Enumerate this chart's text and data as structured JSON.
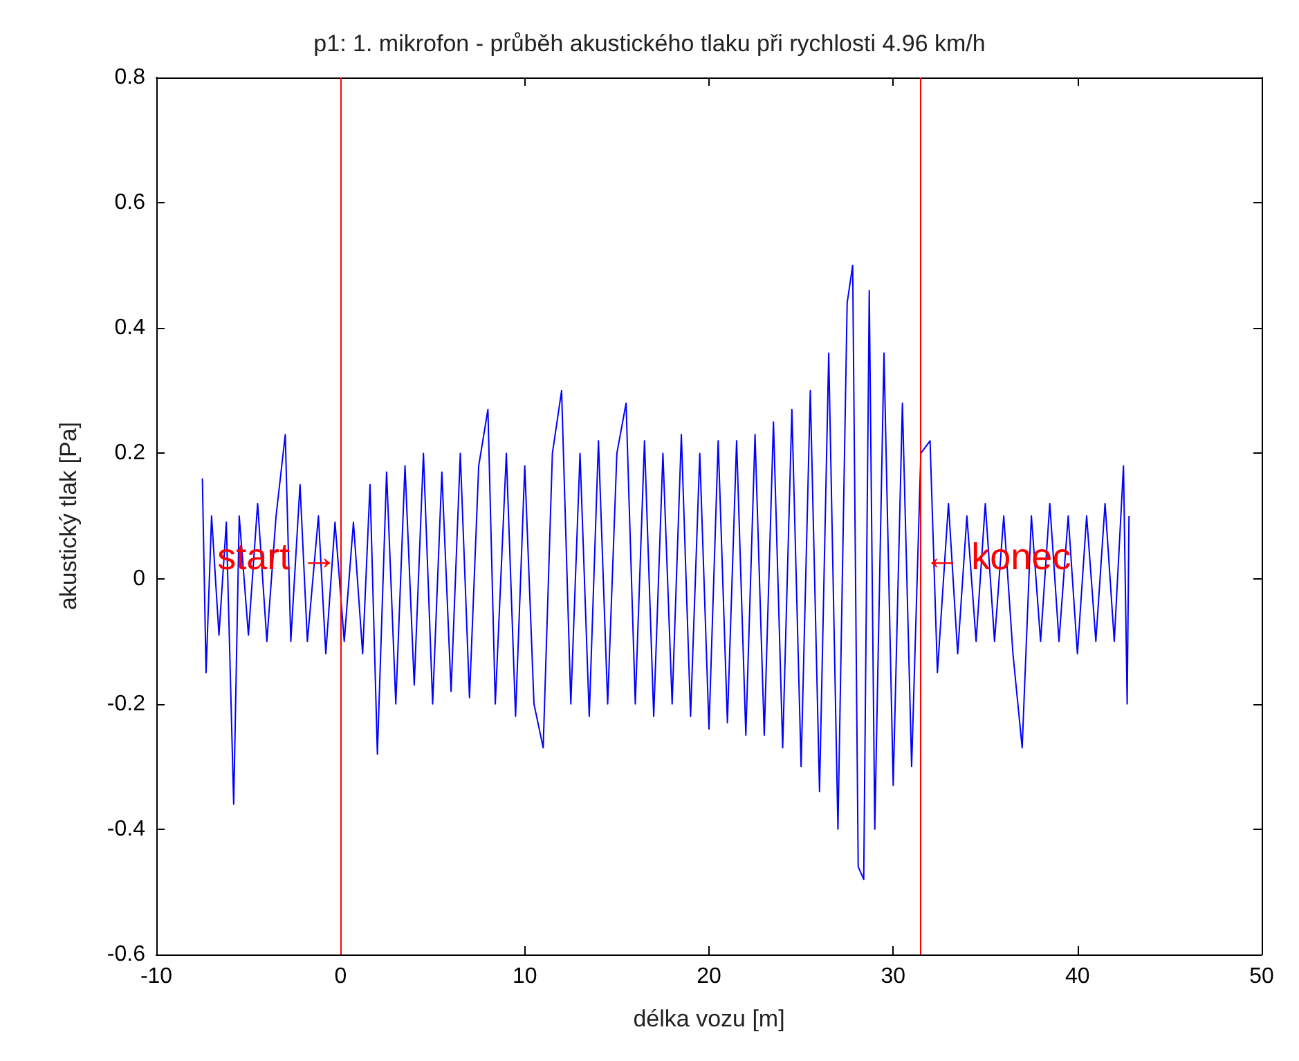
{
  "chart_data": {
    "type": "line",
    "title": "p1: 1. mikrofon - průběh akustického tlaku při rychlosti 4.96 km/h",
    "xlabel": "délka vozu [m]",
    "ylabel": "akustický tlak [Pa]",
    "xlim": [
      -10,
      50
    ],
    "xticks": [
      -10,
      0,
      10,
      20,
      30,
      40,
      50
    ],
    "ylim": [
      -0.6,
      0.8
    ],
    "yticks": [
      -0.6,
      -0.4,
      -0.2,
      0,
      0.2,
      0.4,
      0.6,
      0.8
    ],
    "marker": "none",
    "line_style": "solid",
    "series": [
      {
        "color": "#0000ff",
        "x": [
          -7.5,
          -7.3,
          -7,
          -6.6,
          -6.2,
          -5.8,
          -5.5,
          -5,
          -4.5,
          -4,
          -3.5,
          -3,
          -2.7,
          -2.2,
          -1.8,
          -1.2,
          -0.8,
          -0.3,
          0.2,
          0.7,
          1.2,
          1.6,
          2,
          2.5,
          3,
          3.5,
          4,
          4.5,
          5,
          5.5,
          6,
          6.5,
          7,
          7.5,
          8,
          8.4,
          9,
          9.5,
          10,
          10.5,
          11,
          11.5,
          12,
          12.5,
          13,
          13.5,
          14,
          14.5,
          15,
          15.5,
          16,
          16.5,
          17,
          17.5,
          18,
          18.5,
          19,
          19.5,
          20,
          20.5,
          21,
          21.5,
          22,
          22.5,
          23,
          23.5,
          24,
          24.5,
          25,
          25.5,
          26,
          26.5,
          27,
          27.5,
          27.8,
          28.1,
          28.4,
          28.7,
          29,
          29.5,
          30,
          30.5,
          31,
          31.5,
          32,
          32.4,
          33,
          33.5,
          34,
          34.5,
          35,
          35.5,
          36,
          36.5,
          37,
          37.5,
          38,
          38.5,
          39,
          39.5,
          40,
          40.5,
          41,
          41.5,
          42,
          42.5,
          42.7,
          42.8
        ],
        "values": [
          0.16,
          -0.15,
          0.1,
          -0.09,
          0.09,
          -0.36,
          0.1,
          -0.09,
          0.12,
          -0.1,
          0.1,
          0.23,
          -0.1,
          0.15,
          -0.1,
          0.1,
          -0.12,
          0.09,
          -0.1,
          0.09,
          -0.12,
          0.15,
          -0.28,
          0.17,
          -0.2,
          0.18,
          -0.17,
          0.2,
          -0.2,
          0.17,
          -0.18,
          0.2,
          -0.19,
          0.18,
          0.27,
          -0.2,
          0.2,
          -0.22,
          0.18,
          -0.2,
          -0.27,
          0.2,
          0.3,
          -0.2,
          0.2,
          -0.22,
          0.22,
          -0.2,
          0.2,
          0.28,
          -0.2,
          0.22,
          -0.22,
          0.2,
          -0.2,
          0.23,
          -0.22,
          0.2,
          -0.24,
          0.22,
          -0.23,
          0.22,
          -0.25,
          0.23,
          -0.25,
          0.25,
          -0.27,
          0.27,
          -0.3,
          0.3,
          -0.34,
          0.36,
          -0.4,
          0.44,
          0.5,
          -0.46,
          -0.48,
          0.46,
          -0.4,
          0.36,
          -0.33,
          0.28,
          -0.3,
          0.2,
          0.22,
          -0.15,
          0.12,
          -0.12,
          0.1,
          -0.1,
          0.12,
          -0.1,
          0.1,
          -0.12,
          -0.27,
          0.1,
          -0.1,
          0.12,
          -0.1,
          0.1,
          -0.12,
          0.1,
          -0.1,
          0.12,
          -0.1,
          0.18,
          -0.2,
          0.1
        ]
      }
    ],
    "ref_lines": [
      {
        "axis": "x",
        "value": 0,
        "color": "#ff0000"
      },
      {
        "axis": "x",
        "value": 31.5,
        "color": "#ff0000"
      }
    ],
    "annotations": [
      {
        "text": "start →",
        "x": 0,
        "y": 0.035
      },
      {
        "text": "← konec",
        "x": 31.5,
        "y": 0.035
      }
    ]
  }
}
